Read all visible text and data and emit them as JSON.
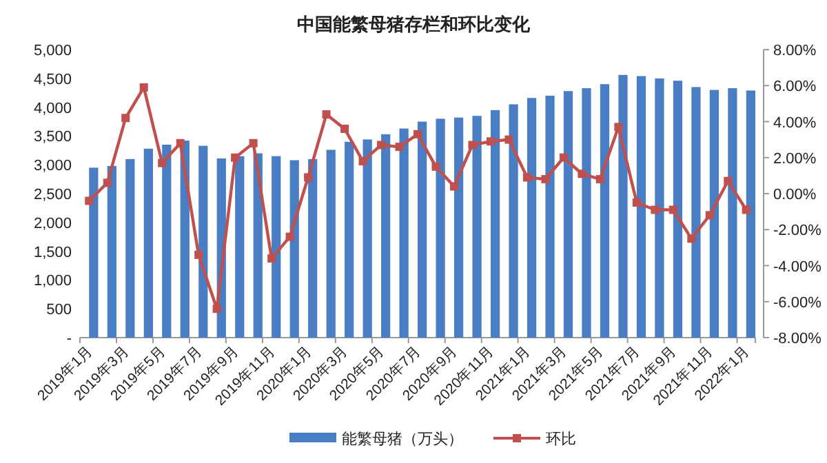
{
  "chart_data": {
    "type": "bar",
    "title": "中国能繁母猪存栏和环比变化",
    "categories": [
      "2019年1月",
      null,
      "2019年3月",
      null,
      "2019年5月",
      null,
      "2019年7月",
      null,
      "2019年9月",
      null,
      "2019年11月",
      null,
      "2020年1月",
      null,
      "2020年3月",
      null,
      "2020年5月",
      null,
      "2020年7月",
      null,
      "2020年9月",
      null,
      "2020年11月",
      null,
      "2021年1月",
      null,
      "2021年3月",
      null,
      "2021年5月",
      null,
      "2021年7月",
      null,
      "2021年9月",
      null,
      "2021年11月",
      null,
      "2022年1月"
    ],
    "series": [
      {
        "name": "能繁母猪（万头）",
        "color": "#4a7ec4",
        "values": [
          2950,
          2980,
          3100,
          3280,
          3350,
          3420,
          3330,
          3110,
          3150,
          3200,
          3150,
          3080,
          3100,
          3260,
          3400,
          3440,
          3530,
          3630,
          3750,
          3800,
          3820,
          3850,
          3950,
          4050,
          4160,
          4200,
          4280,
          4330,
          4400,
          4560,
          4540,
          4500,
          4460,
          4350,
          4300,
          4330,
          4290
        ]
      },
      {
        "name": "环比",
        "type": "line",
        "axis": "y2",
        "color": "#c0504d",
        "values": [
          -0.4,
          0.6,
          4.2,
          5.9,
          1.7,
          2.8,
          -3.4,
          -6.4,
          2.0,
          2.8,
          -3.6,
          -2.4,
          0.9,
          4.4,
          3.6,
          1.8,
          2.7,
          2.6,
          3.3,
          1.5,
          0.4,
          2.7,
          2.9,
          3.0,
          0.9,
          0.8,
          2.0,
          1.1,
          0.8,
          3.7,
          -0.5,
          -0.9,
          -0.9,
          -2.5,
          -1.2,
          0.7,
          -0.9
        ]
      }
    ],
    "ylim": [
      0,
      5000
    ],
    "yticks": [
      {
        "value": 0,
        "label": "-"
      },
      500,
      {
        "value": 1000,
        "label": "1,000"
      },
      {
        "value": 1500,
        "label": "1,500"
      },
      {
        "value": 2000,
        "label": "2,000"
      },
      {
        "value": 2500,
        "label": "2,500"
      },
      {
        "value": 3000,
        "label": "3,000"
      },
      {
        "value": 3500,
        "label": "3,500"
      },
      {
        "value": 4000,
        "label": "4,000"
      },
      {
        "value": 4500,
        "label": "4,500"
      },
      {
        "value": 5000,
        "label": "5,000"
      }
    ],
    "y2lim": [
      -8,
      8
    ],
    "y2ticks": [
      {
        "value": 8,
        "label": "8.00%"
      },
      {
        "value": 6,
        "label": "6.00%"
      },
      {
        "value": 4,
        "label": "4.00%"
      },
      {
        "value": 2,
        "label": "2.00%"
      },
      {
        "value": 0,
        "label": "0.00%"
      },
      {
        "value": -2,
        "label": "-2.00%"
      },
      {
        "value": -4,
        "label": "-4.00%"
      },
      {
        "value": -6,
        "label": "-6.00%"
      },
      {
        "value": -8,
        "label": "-8.00%"
      }
    ],
    "marker": "square",
    "line_style": "solid",
    "grid": false,
    "legend": "bottom"
  }
}
